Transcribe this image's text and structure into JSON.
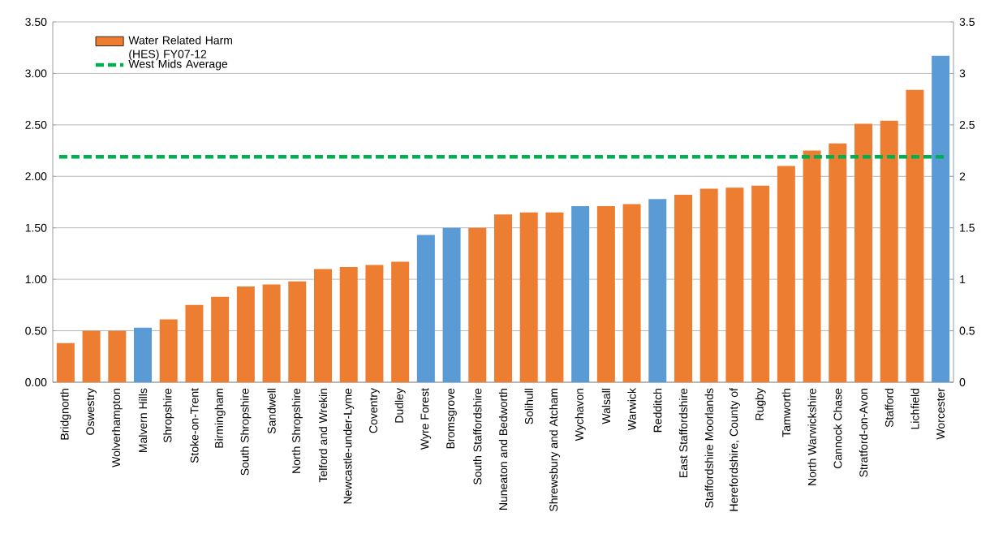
{
  "chart_data": {
    "type": "bar",
    "categories": [
      "Bridgnorth",
      "Oswestry",
      "Wolverhampton",
      "Malvern Hills",
      "Shropshire",
      "Stoke-on-Trent",
      "Birmingham",
      "South Shropshire",
      "Sandwell",
      "North Shropshire",
      "Telford and Wrekin",
      "Newcastle-under-Lyme",
      "Coventry",
      "Dudley",
      "Wyre Forest",
      "Bromsgrove",
      "South Staffordshire",
      "Nuneaton and Bedworth",
      "Solihull",
      "Shrewsbury and Atcham",
      "Wychavon",
      "Walsall",
      "Warwick",
      "Redditch",
      "East Staffordshire",
      "Staffordshire Moorlands",
      "Herefordshire, County of",
      "Rugby",
      "Tamworth",
      "North Warwickshire",
      "Cannock Chase",
      "Stratford-on-Avon",
      "Stafford",
      "Lichfield",
      "Worcester"
    ],
    "series": [
      {
        "name": "Water Related Harm (HES) FY07-12",
        "color": "#ed7d31",
        "colors": [
          "#ed7d31",
          "#ed7d31",
          "#ed7d31",
          "#5b9bd5",
          "#ed7d31",
          "#ed7d31",
          "#ed7d31",
          "#ed7d31",
          "#ed7d31",
          "#ed7d31",
          "#ed7d31",
          "#ed7d31",
          "#ed7d31",
          "#ed7d31",
          "#5b9bd5",
          "#5b9bd5",
          "#ed7d31",
          "#ed7d31",
          "#ed7d31",
          "#ed7d31",
          "#5b9bd5",
          "#ed7d31",
          "#ed7d31",
          "#5b9bd5",
          "#ed7d31",
          "#ed7d31",
          "#ed7d31",
          "#ed7d31",
          "#ed7d31",
          "#ed7d31",
          "#ed7d31",
          "#ed7d31",
          "#ed7d31",
          "#ed7d31",
          "#5b9bd5"
        ],
        "values": [
          0.38,
          0.5,
          0.5,
          0.53,
          0.61,
          0.75,
          0.83,
          0.93,
          0.95,
          0.98,
          1.1,
          1.12,
          1.14,
          1.17,
          1.43,
          1.5,
          1.5,
          1.63,
          1.65,
          1.65,
          1.71,
          1.71,
          1.73,
          1.78,
          1.82,
          1.88,
          1.89,
          1.91,
          2.1,
          2.25,
          2.32,
          2.51,
          2.54,
          2.84,
          3.17
        ]
      }
    ],
    "ref_lines": [
      {
        "axis": "y",
        "value": 2.19,
        "label": "West Mids Average",
        "color": "#00b050",
        "line_style": "dashed"
      }
    ],
    "ylim": [
      0,
      3.5
    ],
    "yticks": [
      {
        "value": 0,
        "label": "0.00"
      },
      {
        "value": 0.5,
        "label": "0.50"
      },
      {
        "value": 1,
        "label": "1.00"
      },
      {
        "value": 1.5,
        "label": "1.50"
      },
      {
        "value": 2,
        "label": "2.00"
      },
      {
        "value": 2.5,
        "label": "2.50"
      },
      {
        "value": 3,
        "label": "3.00"
      },
      {
        "value": 3.5,
        "label": "3.50"
      }
    ],
    "y2lim": [
      0,
      3.5
    ],
    "y2ticks": [
      0,
      0.5,
      1,
      1.5,
      2,
      2.5,
      3,
      3.5
    ],
    "grid": "y",
    "legend": "top left"
  }
}
